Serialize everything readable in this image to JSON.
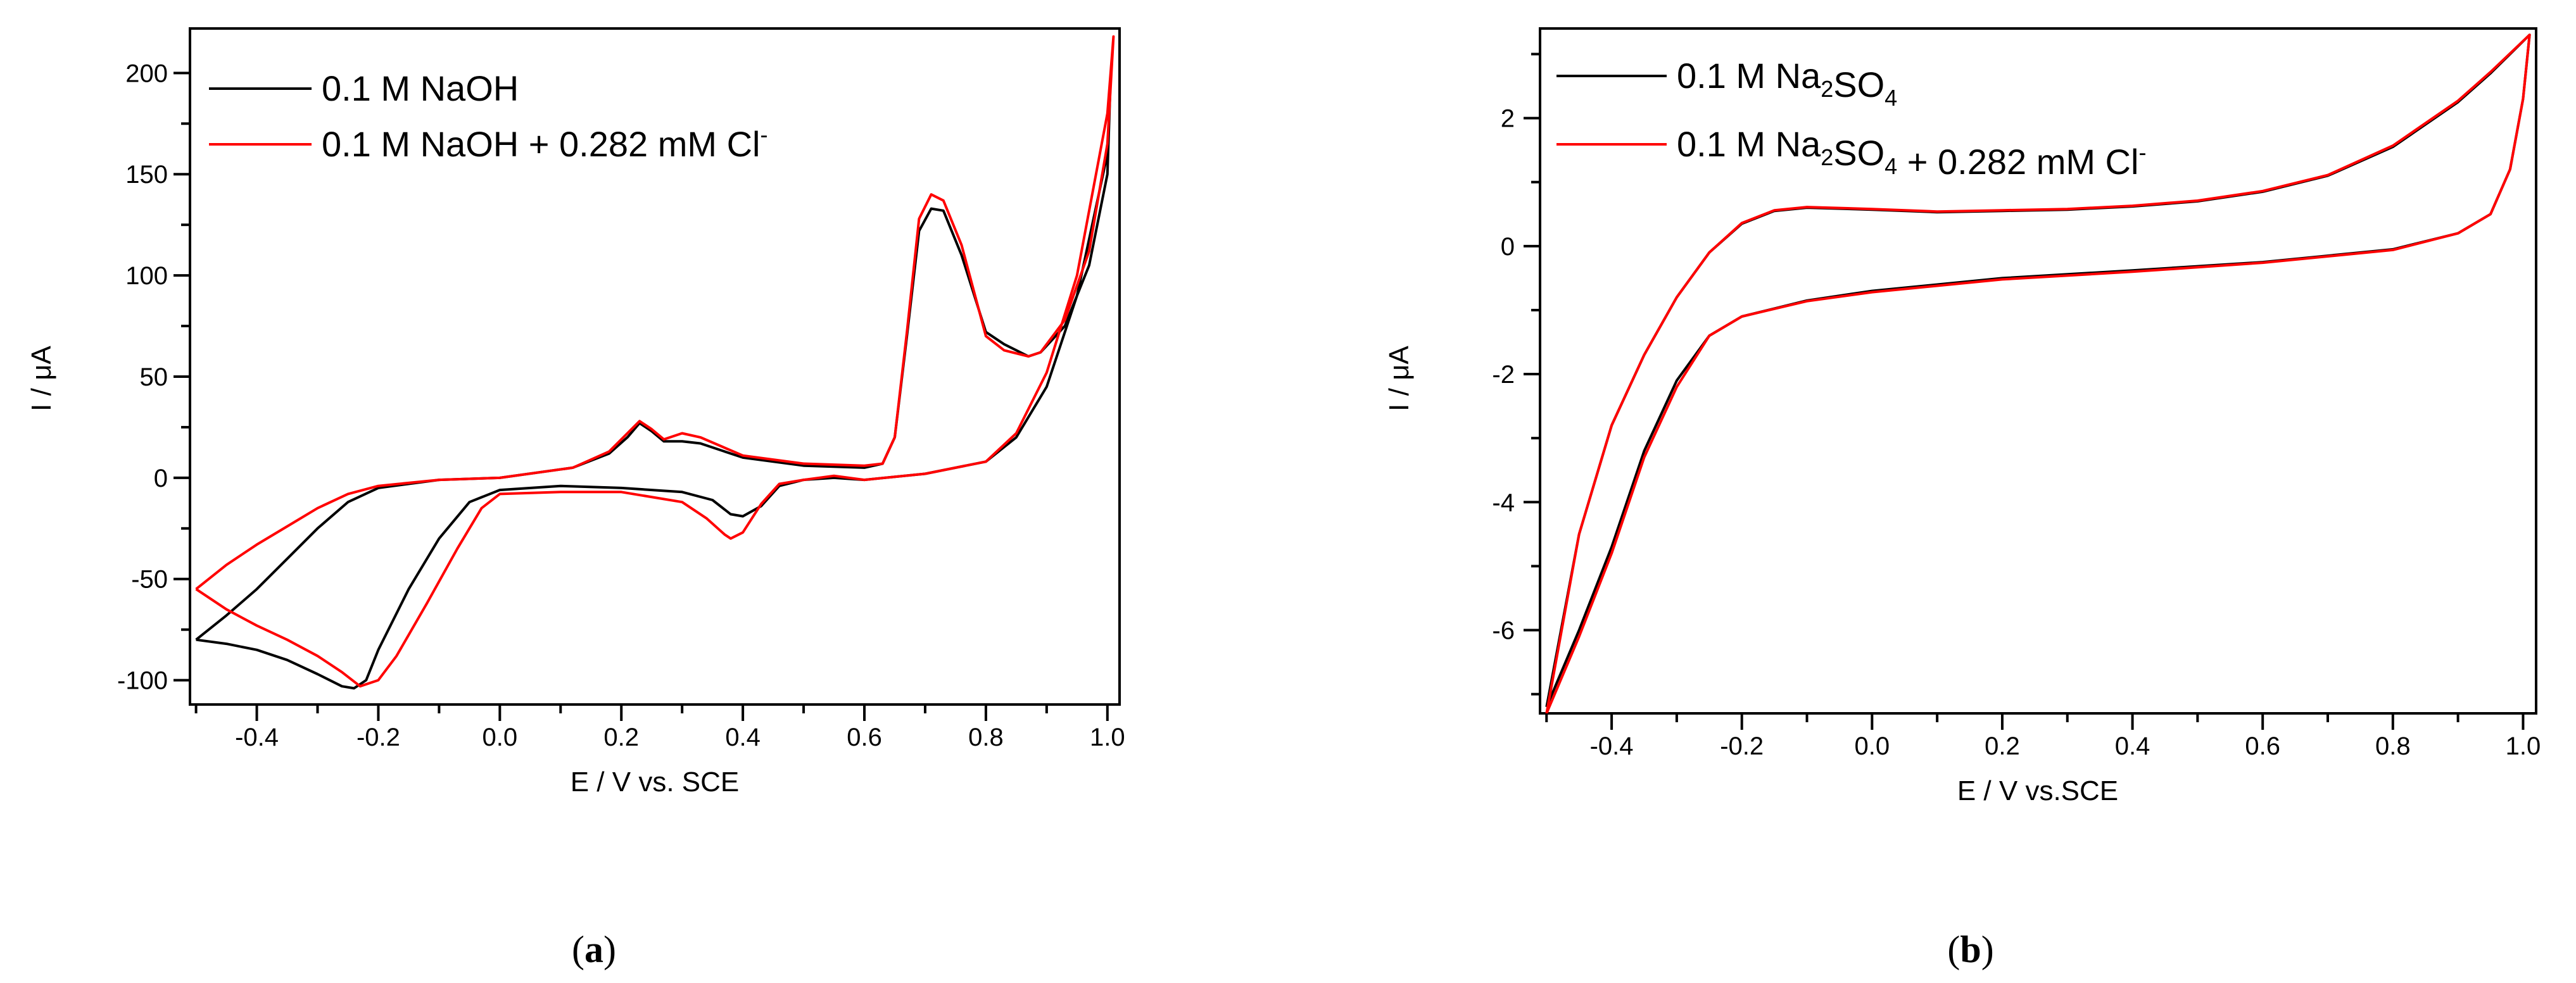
{
  "chart_data": [
    {
      "type": "line",
      "panel_label": "(a)",
      "xlabel": "E / V vs. SCE",
      "ylabel": "I / μA",
      "xlim": [
        -0.51,
        1.02
      ],
      "ylim": [
        -112,
        222
      ],
      "x_ticks": [
        -0.4,
        -0.2,
        0.0,
        0.2,
        0.4,
        0.6,
        0.8,
        1.0
      ],
      "x_tick_labels": [
        "-0.4",
        "-0.2",
        "0.0",
        "0.2",
        "0.4",
        "0.6",
        "0.8",
        "1.0"
      ],
      "y_ticks": [
        -100,
        -50,
        0,
        50,
        100,
        150,
        200
      ],
      "y_tick_labels": [
        "-100",
        "-50",
        "0",
        "50",
        "100",
        "150",
        "200"
      ],
      "legend_position": "top-left",
      "series": [
        {
          "name": "0.1 M NaOH",
          "legend_main": "0.1 M NaOH",
          "color": "#000000",
          "points": [
            [
              -0.5,
              -80
            ],
            [
              -0.45,
              -82
            ],
            [
              -0.4,
              -85
            ],
            [
              -0.35,
              -90
            ],
            [
              -0.3,
              -97
            ],
            [
              -0.26,
              -103
            ],
            [
              -0.24,
              -104
            ],
            [
              -0.22,
              -100
            ],
            [
              -0.2,
              -85
            ],
            [
              -0.15,
              -55
            ],
            [
              -0.1,
              -30
            ],
            [
              -0.05,
              -12
            ],
            [
              0.0,
              -6
            ],
            [
              0.1,
              -4
            ],
            [
              0.2,
              -5
            ],
            [
              0.3,
              -7
            ],
            [
              0.35,
              -11
            ],
            [
              0.38,
              -18
            ],
            [
              0.4,
              -19
            ],
            [
              0.43,
              -14
            ],
            [
              0.46,
              -4
            ],
            [
              0.5,
              -1
            ],
            [
              0.55,
              0
            ],
            [
              0.6,
              -1
            ],
            [
              0.7,
              2
            ],
            [
              0.8,
              8
            ],
            [
              0.85,
              20
            ],
            [
              0.9,
              45
            ],
            [
              0.95,
              90
            ],
            [
              1.0,
              160
            ],
            [
              1.005,
              195
            ],
            [
              1.0,
              150
            ],
            [
              0.97,
              105
            ],
            [
              0.93,
              75
            ],
            [
              0.89,
              62
            ],
            [
              0.87,
              60
            ],
            [
              0.83,
              66
            ],
            [
              0.8,
              72
            ],
            [
              0.76,
              110
            ],
            [
              0.73,
              132
            ],
            [
              0.71,
              133
            ],
            [
              0.69,
              122
            ],
            [
              0.67,
              70
            ],
            [
              0.65,
              20
            ],
            [
              0.63,
              7
            ],
            [
              0.6,
              5
            ],
            [
              0.5,
              6
            ],
            [
              0.4,
              10
            ],
            [
              0.33,
              17
            ],
            [
              0.3,
              18
            ],
            [
              0.27,
              18
            ],
            [
              0.25,
              23
            ],
            [
              0.23,
              27
            ],
            [
              0.21,
              20
            ],
            [
              0.18,
              12
            ],
            [
              0.12,
              5
            ],
            [
              0.0,
              0
            ],
            [
              -0.1,
              -1
            ],
            [
              -0.2,
              -5
            ],
            [
              -0.25,
              -12
            ],
            [
              -0.3,
              -25
            ],
            [
              -0.35,
              -40
            ],
            [
              -0.4,
              -55
            ],
            [
              -0.45,
              -68
            ],
            [
              -0.5,
              -80
            ]
          ]
        },
        {
          "name": "0.1 M NaOH + 0.282 mM Cl-",
          "legend_main": "0.1 M NaOH + 0.282 mM Cl",
          "legend_sup": "-",
          "color": "#ff0000",
          "points": [
            [
              -0.5,
              -55
            ],
            [
              -0.45,
              -65
            ],
            [
              -0.4,
              -73
            ],
            [
              -0.35,
              -80
            ],
            [
              -0.3,
              -88
            ],
            [
              -0.26,
              -96
            ],
            [
              -0.23,
              -103
            ],
            [
              -0.2,
              -100
            ],
            [
              -0.17,
              -88
            ],
            [
              -0.12,
              -62
            ],
            [
              -0.07,
              -35
            ],
            [
              -0.03,
              -15
            ],
            [
              0.0,
              -8
            ],
            [
              0.1,
              -7
            ],
            [
              0.2,
              -7
            ],
            [
              0.3,
              -12
            ],
            [
              0.34,
              -20
            ],
            [
              0.37,
              -28
            ],
            [
              0.38,
              -30
            ],
            [
              0.4,
              -27
            ],
            [
              0.43,
              -13
            ],
            [
              0.46,
              -3
            ],
            [
              0.5,
              -1
            ],
            [
              0.55,
              1
            ],
            [
              0.6,
              -1
            ],
            [
              0.7,
              2
            ],
            [
              0.8,
              8
            ],
            [
              0.85,
              22
            ],
            [
              0.9,
              52
            ],
            [
              0.95,
              100
            ],
            [
              1.0,
              180
            ],
            [
              1.01,
              218
            ],
            [
              1.0,
              165
            ],
            [
              0.97,
              112
            ],
            [
              0.93,
              78
            ],
            [
              0.89,
              62
            ],
            [
              0.87,
              60
            ],
            [
              0.83,
              63
            ],
            [
              0.8,
              70
            ],
            [
              0.76,
              115
            ],
            [
              0.73,
              137
            ],
            [
              0.71,
              140
            ],
            [
              0.69,
              128
            ],
            [
              0.67,
              72
            ],
            [
              0.65,
              20
            ],
            [
              0.63,
              7
            ],
            [
              0.6,
              6
            ],
            [
              0.5,
              7
            ],
            [
              0.4,
              11
            ],
            [
              0.33,
              20
            ],
            [
              0.3,
              22
            ],
            [
              0.27,
              19
            ],
            [
              0.25,
              24
            ],
            [
              0.23,
              28
            ],
            [
              0.21,
              22
            ],
            [
              0.18,
              13
            ],
            [
              0.12,
              5
            ],
            [
              0.0,
              0
            ],
            [
              -0.1,
              -1
            ],
            [
              -0.2,
              -4
            ],
            [
              -0.25,
              -8
            ],
            [
              -0.3,
              -15
            ],
            [
              -0.35,
              -24
            ],
            [
              -0.4,
              -33
            ],
            [
              -0.45,
              -43
            ],
            [
              -0.5,
              -55
            ]
          ]
        }
      ]
    },
    {
      "type": "line",
      "panel_label": "(b)",
      "xlabel": "E / V vs.SCE",
      "ylabel": "I / μA",
      "xlim": [
        -0.51,
        1.02
      ],
      "ylim": [
        -7.3,
        3.4
      ],
      "x_ticks": [
        -0.4,
        -0.2,
        0.0,
        0.2,
        0.4,
        0.6,
        0.8,
        1.0
      ],
      "x_tick_labels": [
        "-0.4",
        "-0.2",
        "0.0",
        "0.2",
        "0.4",
        "0.6",
        "0.8",
        "1.0"
      ],
      "y_ticks": [
        -6,
        -4,
        -2,
        0,
        2
      ],
      "y_tick_labels": [
        "-6",
        "-4",
        "-2",
        "0",
        "2"
      ],
      "legend_position": "top-left",
      "series": [
        {
          "name": "0.1 M Na2SO4",
          "legend_parts": [
            [
              "0.1 M Na",
              "normal"
            ],
            [
              "2",
              "sub"
            ],
            [
              "SO",
              "normal"
            ],
            [
              "4",
              "sub"
            ]
          ],
          "color": "#000000",
          "points": [
            [
              -0.5,
              -7.2
            ],
            [
              -0.45,
              -6.0
            ],
            [
              -0.4,
              -4.7
            ],
            [
              -0.35,
              -3.2
            ],
            [
              -0.3,
              -2.1
            ],
            [
              -0.25,
              -1.4
            ],
            [
              -0.2,
              -1.1
            ],
            [
              -0.1,
              -0.85
            ],
            [
              0.0,
              -0.7
            ],
            [
              0.2,
              -0.5
            ],
            [
              0.4,
              -0.38
            ],
            [
              0.6,
              -0.25
            ],
            [
              0.8,
              -0.05
            ],
            [
              0.9,
              0.2
            ],
            [
              0.95,
              0.5
            ],
            [
              0.98,
              1.2
            ],
            [
              1.0,
              2.3
            ],
            [
              1.01,
              3.3
            ],
            [
              0.95,
              2.7
            ],
            [
              0.9,
              2.25
            ],
            [
              0.8,
              1.55
            ],
            [
              0.7,
              1.1
            ],
            [
              0.6,
              0.85
            ],
            [
              0.5,
              0.7
            ],
            [
              0.4,
              0.62
            ],
            [
              0.3,
              0.57
            ],
            [
              0.2,
              0.55
            ],
            [
              0.1,
              0.53
            ],
            [
              0.0,
              0.57
            ],
            [
              -0.1,
              0.6
            ],
            [
              -0.15,
              0.55
            ],
            [
              -0.2,
              0.35
            ],
            [
              -0.25,
              -0.1
            ],
            [
              -0.3,
              -0.8
            ],
            [
              -0.35,
              -1.7
            ],
            [
              -0.4,
              -2.8
            ],
            [
              -0.45,
              -4.5
            ],
            [
              -0.5,
              -7.2
            ]
          ]
        },
        {
          "name": "0.1 M Na2SO4 + 0.282 mM Cl-",
          "legend_parts": [
            [
              "0.1 M Na",
              "normal"
            ],
            [
              "2",
              "sub"
            ],
            [
              "SO",
              "normal"
            ],
            [
              "4",
              "sub"
            ],
            [
              " + 0.282 mM Cl",
              "normal"
            ],
            [
              "-",
              "sup"
            ]
          ],
          "color": "#ff0000",
          "points": [
            [
              -0.5,
              -7.3
            ],
            [
              -0.45,
              -6.1
            ],
            [
              -0.4,
              -4.8
            ],
            [
              -0.35,
              -3.3
            ],
            [
              -0.3,
              -2.2
            ],
            [
              -0.25,
              -1.4
            ],
            [
              -0.2,
              -1.1
            ],
            [
              -0.1,
              -0.86
            ],
            [
              0.0,
              -0.72
            ],
            [
              0.2,
              -0.52
            ],
            [
              0.4,
              -0.4
            ],
            [
              0.6,
              -0.26
            ],
            [
              0.8,
              -0.06
            ],
            [
              0.9,
              0.2
            ],
            [
              0.95,
              0.5
            ],
            [
              0.98,
              1.2
            ],
            [
              1.0,
              2.3
            ],
            [
              1.01,
              3.3
            ],
            [
              0.95,
              2.72
            ],
            [
              0.9,
              2.27
            ],
            [
              0.8,
              1.57
            ],
            [
              0.7,
              1.11
            ],
            [
              0.6,
              0.86
            ],
            [
              0.5,
              0.71
            ],
            [
              0.4,
              0.63
            ],
            [
              0.3,
              0.58
            ],
            [
              0.2,
              0.56
            ],
            [
              0.1,
              0.54
            ],
            [
              0.0,
              0.58
            ],
            [
              -0.1,
              0.61
            ],
            [
              -0.15,
              0.56
            ],
            [
              -0.2,
              0.36
            ],
            [
              -0.25,
              -0.1
            ],
            [
              -0.3,
              -0.8
            ],
            [
              -0.35,
              -1.7
            ],
            [
              -0.4,
              -2.8
            ],
            [
              -0.45,
              -4.5
            ],
            [
              -0.5,
              -7.3
            ]
          ]
        }
      ]
    }
  ]
}
